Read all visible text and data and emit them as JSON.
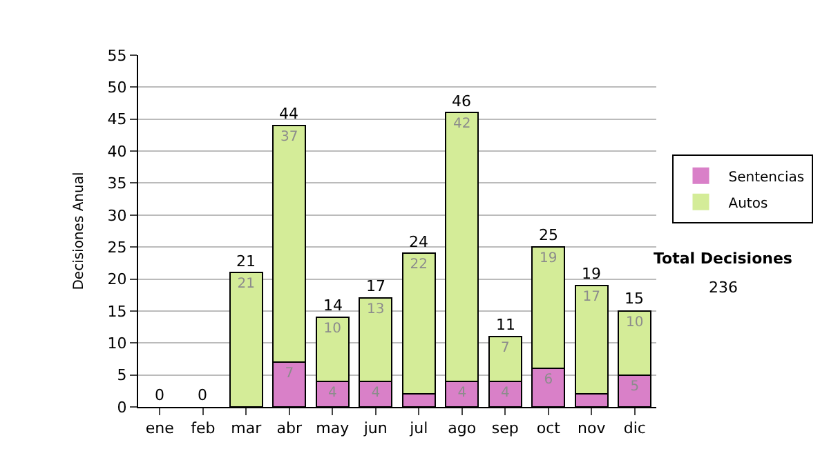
{
  "chart_data": {
    "type": "bar",
    "stacked": true,
    "ylabel": "Decisiones Anual",
    "categories": [
      "ene",
      "feb",
      "mar",
      "abr",
      "may",
      "jun",
      "jul",
      "ago",
      "sep",
      "oct",
      "nov",
      "dic"
    ],
    "series": [
      {
        "name": "Sentencias",
        "color": "#d980c8",
        "values": [
          0,
          0,
          0,
          7,
          4,
          4,
          2,
          4,
          4,
          6,
          2,
          5
        ],
        "value_labels": [
          null,
          null,
          null,
          "7",
          "4",
          "4",
          null,
          "4",
          "4",
          "6",
          null,
          "5"
        ]
      },
      {
        "name": "Autos",
        "color": "#d4ec98",
        "values": [
          0,
          0,
          21,
          37,
          10,
          13,
          22,
          42,
          7,
          19,
          17,
          10
        ],
        "value_labels": [
          null,
          null,
          "21",
          "37",
          "10",
          "13",
          "22",
          "42",
          "7",
          "19",
          "17",
          "10"
        ]
      }
    ],
    "totals": [
      "0",
      "0",
      "21",
      "44",
      "14",
      "17",
      "24",
      "46",
      "11",
      "25",
      "19",
      "15"
    ],
    "ylim": [
      0,
      55
    ],
    "yticks": [
      0,
      5,
      10,
      15,
      20,
      25,
      30,
      35,
      40,
      45,
      50,
      55
    ],
    "grid": "y",
    "legend": "right",
    "annotations": [
      "Total Decisiones",
      "236"
    ]
  }
}
